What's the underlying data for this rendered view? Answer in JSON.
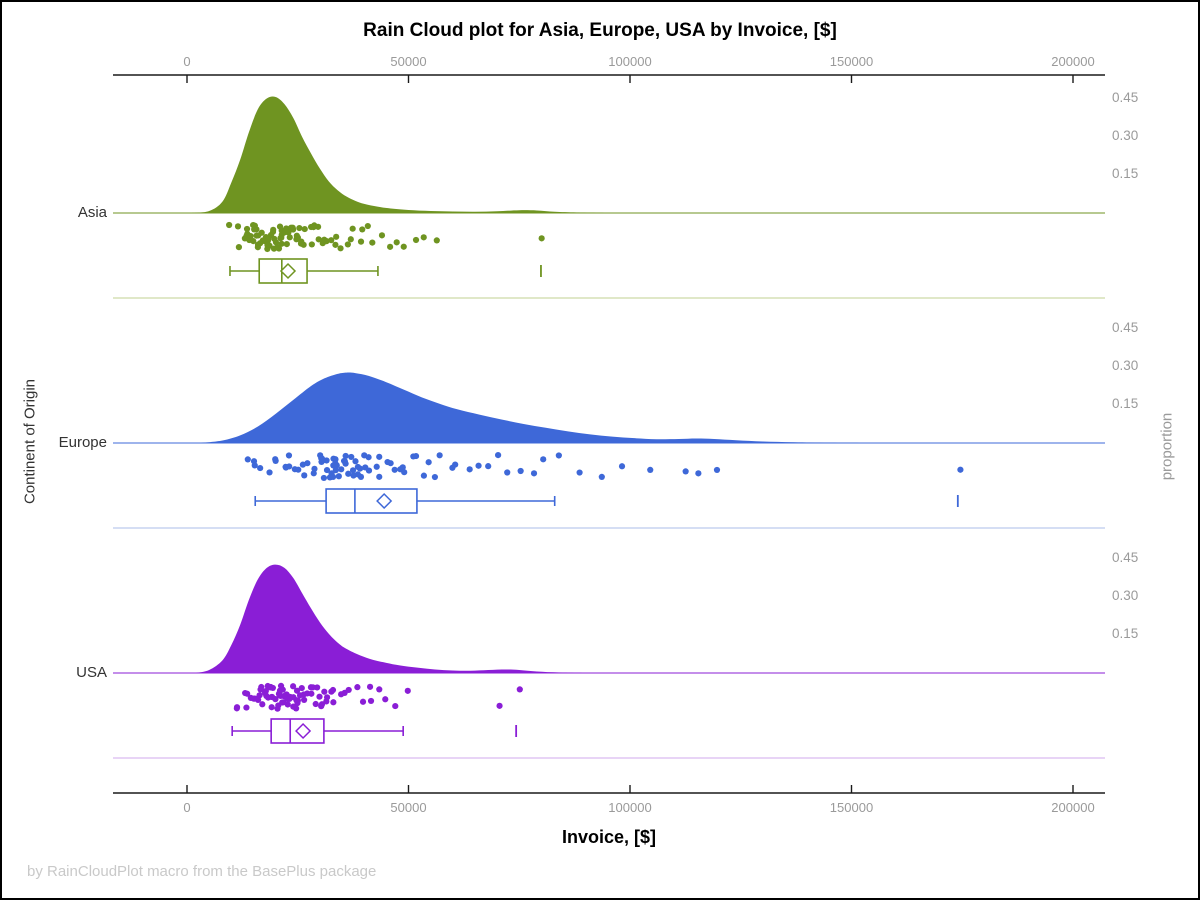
{
  "chart_data": {
    "type": "raincloud",
    "title": "Rain Cloud plot for Asia, Europe, USA by Invoice, [$]",
    "xlabel": "Invoice, [$]",
    "ylabel": "Continent of Origin",
    "ylabel_right": "proportion",
    "footer": "by RainCloudPlot macro from the BasePlus package",
    "x_ticks": [
      0,
      50000,
      100000,
      150000,
      200000
    ],
    "x_range": [
      -17000,
      207000
    ],
    "proportion_ticks": [
      0.45,
      0.3,
      0.15
    ],
    "colors": {
      "axis": "#1a1a1a",
      "tick_label": "#9a9a9a",
      "group_label": "#333333",
      "xlabel_pink": "#FBACBE",
      "footer_gray": "#c9c9c9"
    },
    "groups": [
      {
        "label": "Asia",
        "color": "#6F9421",
        "separator_color": "#CDD9A8",
        "density": [
          [
            1000,
            0
          ],
          [
            5000,
            0.008
          ],
          [
            8000,
            0.045
          ],
          [
            10000,
            0.12
          ],
          [
            12000,
            0.21
          ],
          [
            14000,
            0.32
          ],
          [
            16000,
            0.41
          ],
          [
            18000,
            0.452
          ],
          [
            20000,
            0.458
          ],
          [
            22000,
            0.43
          ],
          [
            24000,
            0.375
          ],
          [
            26000,
            0.3
          ],
          [
            28000,
            0.235
          ],
          [
            30000,
            0.175
          ],
          [
            32000,
            0.125
          ],
          [
            34000,
            0.09
          ],
          [
            36000,
            0.065
          ],
          [
            38000,
            0.048
          ],
          [
            40000,
            0.036
          ],
          [
            43000,
            0.025
          ],
          [
            46000,
            0.018
          ],
          [
            50000,
            0.012
          ],
          [
            55000,
            0.008
          ],
          [
            60000,
            0.006
          ],
          [
            65000,
            0.005
          ],
          [
            70000,
            0.007
          ],
          [
            75000,
            0.011
          ],
          [
            79000,
            0.01
          ],
          [
            83000,
            0.005
          ],
          [
            88000,
            0.002
          ],
          [
            95000,
            0
          ]
        ],
        "points": [
          10300,
          11000,
          11800,
          12400,
          12900,
          13300,
          13700,
          14000,
          14300,
          14600,
          14900,
          15200,
          15500,
          15700,
          15900,
          16100,
          16300,
          16500,
          16700,
          16900,
          17100,
          17300,
          17500,
          17700,
          17900,
          18100,
          18300,
          18500,
          18700,
          18900,
          19100,
          19300,
          19500,
          19700,
          19900,
          20100,
          20300,
          20500,
          20700,
          20900,
          21100,
          21300,
          21500,
          21700,
          21900,
          22100,
          22400,
          22700,
          23000,
          23300,
          23600,
          23900,
          24200,
          24500,
          24800,
          25100,
          25500,
          25900,
          26300,
          26700,
          27100,
          27500,
          28000,
          28500,
          29000,
          29500,
          30000,
          30600,
          31200,
          31800,
          32500,
          33200,
          34000,
          34800,
          35700,
          36600,
          37600,
          38700,
          39900,
          41200,
          42600,
          44100,
          45700,
          47500,
          49500,
          51700,
          54200,
          57000,
          80000
        ],
        "box": {
          "whisker_low": 9700,
          "q1": 16300,
          "median": 21400,
          "mean": 22800,
          "q3": 27100,
          "whisker_high": 43100,
          "outliers": [
            79900
          ]
        }
      },
      {
        "label": "Europe",
        "color": "#3E68D8",
        "separator_color": "#BCCAEE",
        "density": [
          [
            3000,
            0
          ],
          [
            8000,
            0.01
          ],
          [
            12000,
            0.03
          ],
          [
            16000,
            0.065
          ],
          [
            20000,
            0.115
          ],
          [
            24000,
            0.17
          ],
          [
            28000,
            0.225
          ],
          [
            31000,
            0.255
          ],
          [
            34000,
            0.273
          ],
          [
            36000,
            0.278
          ],
          [
            38000,
            0.276
          ],
          [
            41000,
            0.265
          ],
          [
            45000,
            0.24
          ],
          [
            49000,
            0.21
          ],
          [
            53000,
            0.18
          ],
          [
            57000,
            0.155
          ],
          [
            61000,
            0.133
          ],
          [
            66000,
            0.112
          ],
          [
            71000,
            0.093
          ],
          [
            76000,
            0.075
          ],
          [
            81000,
            0.06
          ],
          [
            86000,
            0.046
          ],
          [
            91000,
            0.034
          ],
          [
            96000,
            0.025
          ],
          [
            101000,
            0.019
          ],
          [
            106000,
            0.015
          ],
          [
            111000,
            0.016
          ],
          [
            115000,
            0.018
          ],
          [
            119000,
            0.016
          ],
          [
            124000,
            0.011
          ],
          [
            130000,
            0.006
          ],
          [
            137000,
            0.003
          ],
          [
            145000,
            0.001
          ],
          [
            155000,
            0
          ]
        ],
        "points": [
          13600,
          14500,
          15500,
          17000,
          18500,
          19500,
          20500,
          21500,
          22500,
          23000,
          23800,
          24500,
          25200,
          26000,
          26800,
          27500,
          28200,
          29000,
          29600,
          30200,
          30500,
          30800,
          31100,
          31400,
          31700,
          32000,
          32300,
          32500,
          32900,
          33000,
          33400,
          33500,
          34000,
          34200,
          34500,
          35000,
          35200,
          35500,
          36000,
          36200,
          36500,
          37000,
          37200,
          37500,
          38000,
          38200,
          38500,
          39000,
          39300,
          39600,
          40200,
          40800,
          41500,
          42200,
          43000,
          43800,
          44600,
          45500,
          46400,
          47400,
          48500,
          49600,
          50800,
          52000,
          53300,
          54700,
          56200,
          57800,
          59500,
          61300,
          63200,
          65200,
          67400,
          69700,
          72200,
          74900,
          77800,
          81000,
          84500,
          88500,
          93000,
          98000,
          104000,
          113000,
          116000,
          120000,
          174000
        ],
        "box": {
          "whisker_low": 15400,
          "q1": 31400,
          "median": 37900,
          "mean": 44500,
          "q3": 51900,
          "whisker_high": 83000,
          "outliers": [
            174000
          ]
        }
      },
      {
        "label": "USA",
        "color": "#8A1ED6",
        "separator_color": "#D9BBF0",
        "density": [
          [
            2000,
            0
          ],
          [
            5000,
            0.012
          ],
          [
            8000,
            0.05
          ],
          [
            10000,
            0.11
          ],
          [
            12000,
            0.19
          ],
          [
            14000,
            0.29
          ],
          [
            16000,
            0.37
          ],
          [
            18000,
            0.415
          ],
          [
            20000,
            0.428
          ],
          [
            22000,
            0.415
          ],
          [
            24000,
            0.375
          ],
          [
            26000,
            0.315
          ],
          [
            28000,
            0.255
          ],
          [
            30000,
            0.2
          ],
          [
            32000,
            0.155
          ],
          [
            34000,
            0.12
          ],
          [
            36000,
            0.095
          ],
          [
            39000,
            0.07
          ],
          [
            42000,
            0.052
          ],
          [
            45000,
            0.04
          ],
          [
            48000,
            0.03
          ],
          [
            52000,
            0.021
          ],
          [
            56000,
            0.014
          ],
          [
            60000,
            0.01
          ],
          [
            64000,
            0.009
          ],
          [
            68000,
            0.012
          ],
          [
            72000,
            0.014
          ],
          [
            75000,
            0.012
          ],
          [
            79000,
            0.006
          ],
          [
            84000,
            0.002
          ],
          [
            90000,
            0
          ]
        ],
        "points": [
          10900,
          11500,
          12800,
          13600,
          14200,
          14800,
          15300,
          15800,
          16200,
          16400,
          16600,
          17000,
          17200,
          17400,
          17800,
          18000,
          18100,
          18400,
          18700,
          18800,
          19000,
          19300,
          19500,
          19600,
          19900,
          20100,
          20200,
          20500,
          20700,
          20800,
          21100,
          21300,
          21400,
          21700,
          21900,
          22000,
          22300,
          22500,
          22600,
          22900,
          23100,
          23200,
          23500,
          23700,
          23900,
          24300,
          24500,
          24700,
          25100,
          25300,
          25500,
          26000,
          26200,
          26500,
          27000,
          27200,
          27500,
          28000,
          28300,
          28600,
          29200,
          29500,
          29800,
          30500,
          31000,
          31200,
          32000,
          32800,
          33000,
          33700,
          34600,
          35600,
          36700,
          37900,
          39200,
          40600,
          42100,
          43700,
          45400,
          47300,
          49300,
          70500,
          74800
        ],
        "box": {
          "whisker_low": 10200,
          "q1": 19000,
          "median": 23300,
          "mean": 26200,
          "q3": 30900,
          "whisker_high": 48800,
          "outliers": [
            74300
          ]
        }
      }
    ]
  }
}
